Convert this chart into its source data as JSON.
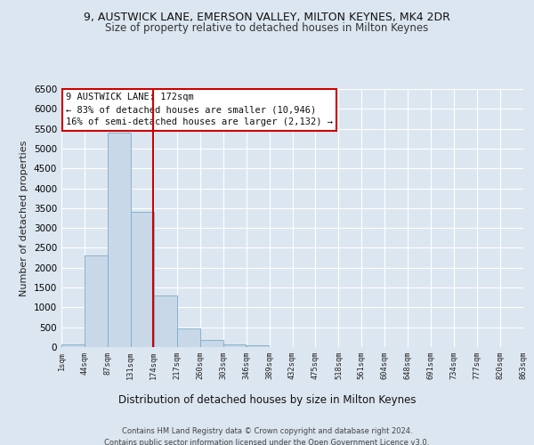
{
  "title": "9, AUSTWICK LANE, EMERSON VALLEY, MILTON KEYNES, MK4 2DR",
  "subtitle": "Size of property relative to detached houses in Milton Keynes",
  "xlabel": "Distribution of detached houses by size in Milton Keynes",
  "ylabel": "Number of detached properties",
  "bar_values": [
    75,
    2300,
    5400,
    3400,
    1300,
    480,
    180,
    75,
    50,
    10,
    5,
    5,
    2,
    0,
    0,
    0,
    0,
    0,
    0,
    0
  ],
  "xtick_labels": [
    "1sqm",
    "44sqm",
    "87sqm",
    "131sqm",
    "174sqm",
    "217sqm",
    "260sqm",
    "303sqm",
    "346sqm",
    "389sqm",
    "432sqm",
    "475sqm",
    "518sqm",
    "561sqm",
    "604sqm",
    "648sqm",
    "691sqm",
    "734sqm",
    "777sqm",
    "820sqm",
    "863sqm"
  ],
  "bar_color": "#c8d8e8",
  "bar_edgecolor": "#7aaac8",
  "background_color": "#dce6f0",
  "fig_background_color": "#dce6f0",
  "grid_color": "#ffffff",
  "vline_color": "#cc0000",
  "annotation_text": "9 AUSTWICK LANE: 172sqm\n← 83% of detached houses are smaller (10,946)\n16% of semi-detached houses are larger (2,132) →",
  "annotation_box_color": "#ffffff",
  "annotation_box_edgecolor": "#cc0000",
  "ylim_max": 6500,
  "yticks": [
    0,
    500,
    1000,
    1500,
    2000,
    2500,
    3000,
    3500,
    4000,
    4500,
    5000,
    5500,
    6000,
    6500
  ],
  "footer": "Contains HM Land Registry data © Crown copyright and database right 2024.\nContains public sector information licensed under the Open Government Licence v3.0.",
  "bin_width": 43,
  "vline_x": 172
}
